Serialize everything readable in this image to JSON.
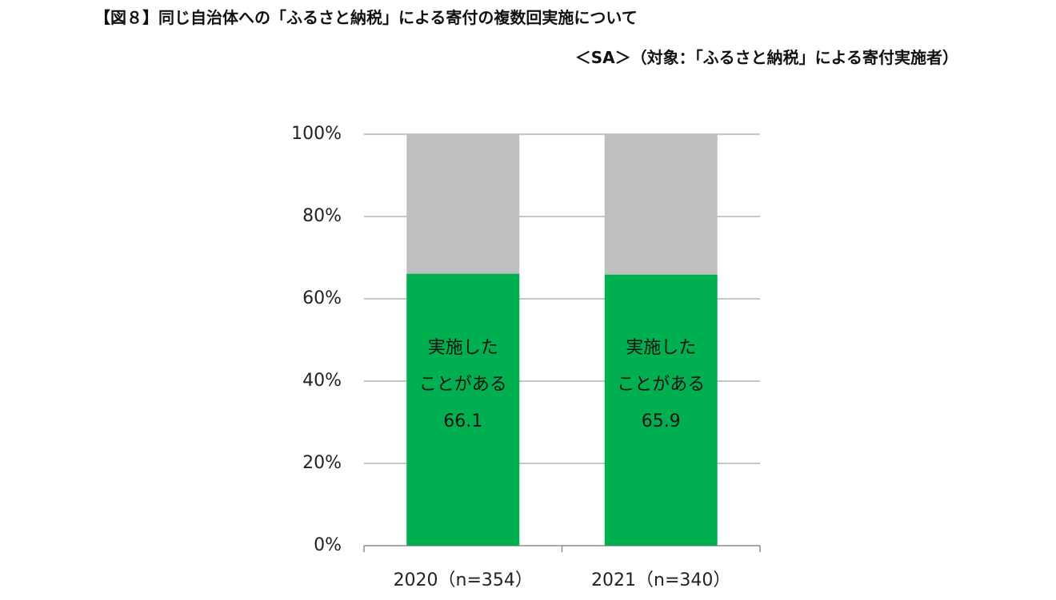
{
  "chart_data": {
    "type": "stacked_bar",
    "title": "【図８】同じ自治体への「ふるさと納税」による寄付の複数回実施について",
    "subtitle": "＜SA＞（対象：「ふるさと納税」による寄付実施者）",
    "categories": [
      "2020（n=354）",
      "2021（n=340）"
    ],
    "series": [
      {
        "name": "実施した\nことがある",
        "color": "#00b050",
        "values": [
          66.1,
          65.9
        ]
      },
      {
        "color": "#bfbfbf",
        "values": [
          33.9,
          34.1
        ]
      }
    ],
    "ylim": [
      0,
      100
    ],
    "yticks": [
      {
        "value": 0,
        "label": "0%"
      },
      {
        "value": 20,
        "label": "20%"
      },
      {
        "value": 40,
        "label": "40%"
      },
      {
        "value": 60,
        "label": "60%"
      },
      {
        "value": 80,
        "label": "80%"
      },
      {
        "value": 100,
        "label": "100%"
      }
    ],
    "grid": true
  }
}
